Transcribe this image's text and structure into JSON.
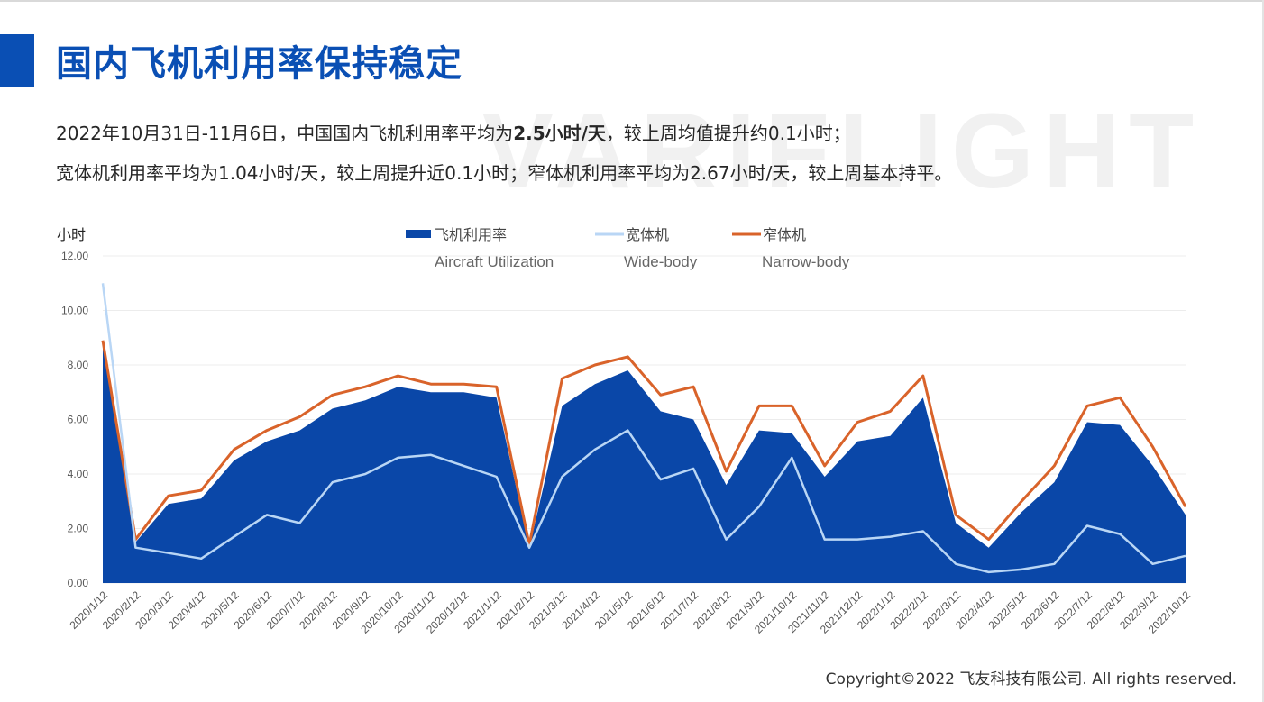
{
  "header": {
    "title": "国内飞机利用率保持稳定",
    "watermark": "VARIFLIGHT"
  },
  "summary": {
    "line1_a": "2022年10月31日-11月6日，中国国内飞机利用率平均为",
    "line1_bold": "2.5小时/天",
    "line1_b": "，较上周均值提升约0.1小时；",
    "line2": "宽体机利用率平均为1.04小时/天，较上周提升近0.1小时；窄体机利用率平均为2.67小时/天，较上周基本持平。"
  },
  "footer": {
    "copyright": "Copyright©2022 飞友科技有限公司. All rights reserved."
  },
  "colors": {
    "utilization": "#0a47a8",
    "widebody": "#b9d6f5",
    "narrowbody": "#d9632a",
    "title": "#0a4fb4"
  },
  "chart_data": {
    "type": "area",
    "ylabel": "小时",
    "ylim": [
      0,
      12
    ],
    "yticks": [
      "12.00",
      "10.00",
      "8.00",
      "6.00",
      "4.00",
      "2.00",
      "0.00"
    ],
    "categories": [
      "2020/1/12",
      "2020/2/12",
      "2020/3/12",
      "2020/4/12",
      "2020/5/12",
      "2020/6/12",
      "2020/7/12",
      "2020/8/12",
      "2020/9/12",
      "2020/10/12",
      "2020/11/12",
      "2020/12/12",
      "2021/1/12",
      "2021/2/12",
      "2021/3/12",
      "2021/4/12",
      "2021/5/12",
      "2021/6/12",
      "2021/7/12",
      "2021/8/12",
      "2021/9/12",
      "2021/10/12",
      "2021/11/12",
      "2021/12/12",
      "2022/1/12",
      "2022/2/12",
      "2022/3/12",
      "2022/4/12",
      "2022/5/12",
      "2022/6/12",
      "2022/7/12",
      "2022/8/12",
      "2022/9/12",
      "2022/10/12"
    ],
    "legend": [
      {
        "name": "飞机利用率",
        "en": "Aircraft Utilization",
        "kind": "area"
      },
      {
        "name": "宽体机",
        "en": "Wide-body",
        "kind": "line"
      },
      {
        "name": "窄体机",
        "en": "Narrow-body",
        "kind": "line"
      }
    ],
    "series": [
      {
        "name": "飞机利用率",
        "values": [
          8.8,
          1.5,
          2.9,
          3.1,
          4.5,
          5.2,
          5.6,
          6.4,
          6.7,
          7.2,
          7.0,
          7.0,
          6.8,
          1.3,
          6.5,
          7.3,
          7.8,
          6.3,
          6.0,
          3.6,
          5.6,
          5.5,
          3.9,
          5.2,
          5.4,
          6.8,
          2.2,
          1.3,
          2.6,
          3.7,
          5.9,
          5.8,
          4.3,
          2.5
        ]
      },
      {
        "name": "宽体机",
        "values": [
          11.0,
          1.3,
          1.1,
          0.9,
          1.7,
          2.5,
          2.2,
          3.7,
          4.0,
          4.6,
          4.7,
          4.3,
          3.9,
          1.3,
          3.9,
          4.9,
          5.6,
          3.8,
          4.2,
          1.6,
          2.8,
          4.6,
          1.6,
          1.6,
          1.7,
          1.9,
          0.7,
          0.4,
          0.5,
          0.7,
          2.1,
          1.8,
          0.7,
          1.0
        ]
      },
      {
        "name": "窄体机",
        "values": [
          8.9,
          1.6,
          3.2,
          3.4,
          4.9,
          5.6,
          6.1,
          6.9,
          7.2,
          7.6,
          7.3,
          7.3,
          7.2,
          1.4,
          7.5,
          8.0,
          8.3,
          6.9,
          7.2,
          4.1,
          6.5,
          6.5,
          4.3,
          5.9,
          6.3,
          7.6,
          2.5,
          1.6,
          3.0,
          4.3,
          6.5,
          6.8,
          5.0,
          2.8
        ]
      }
    ]
  }
}
